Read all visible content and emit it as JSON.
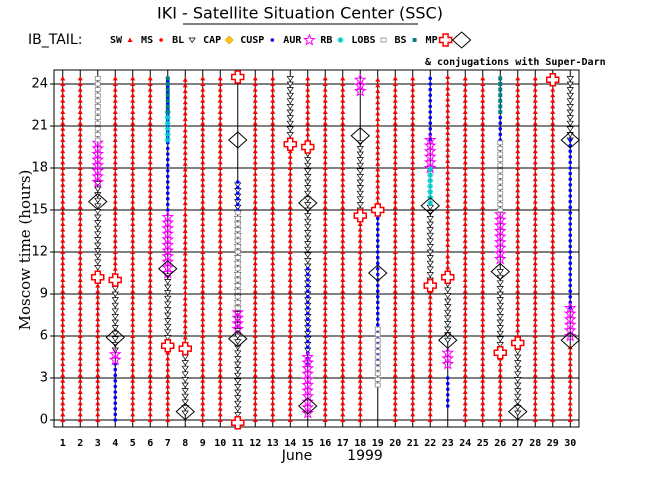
{
  "chart_data": {
    "type": "strip",
    "title": "IKI - Satellite Situation Center (SSC)",
    "mission": "IB_TAIL:",
    "note": "& conjugations with Super-Darn",
    "ylabel": "Moscow time (hours)",
    "xlabel": "June",
    "year": "1999",
    "xlim": [
      0.5,
      30.5
    ],
    "xticks": [
      1,
      2,
      3,
      4,
      5,
      6,
      7,
      8,
      9,
      10,
      11,
      12,
      13,
      14,
      15,
      16,
      17,
      18,
      19,
      20,
      21,
      22,
      23,
      24,
      25,
      26,
      27,
      28,
      29,
      30
    ],
    "ylim": [
      -0.5,
      25
    ],
    "yticks": [
      0,
      3,
      6,
      9,
      12,
      15,
      18,
      21,
      24
    ],
    "grid": true,
    "series": [
      {
        "name": "SW",
        "color": "#ff0000",
        "symbol": "triangle-up",
        "segments": [
          [
            1,
            0,
            24.5
          ],
          [
            2,
            0,
            24.5
          ],
          [
            3,
            0,
            10
          ],
          [
            4,
            10,
            24.5
          ],
          [
            5,
            0,
            24.5
          ],
          [
            6,
            0,
            24.5
          ],
          [
            7,
            0,
            5
          ],
          [
            8,
            5.5,
            24.5
          ],
          [
            9,
            0,
            24.5
          ],
          [
            10,
            0,
            24.5
          ],
          [
            12,
            0,
            24.5
          ],
          [
            13,
            0,
            24.5
          ],
          [
            14,
            0,
            19.5
          ],
          [
            15,
            20,
            24.5
          ],
          [
            16,
            0,
            24.5
          ],
          [
            17,
            0,
            24.5
          ],
          [
            18,
            0,
            14.5
          ],
          [
            19,
            15.5,
            24.5
          ],
          [
            20,
            0,
            24.5
          ],
          [
            21,
            0,
            24.5
          ],
          [
            22,
            0,
            9.5
          ],
          [
            23,
            10.5,
            24.5
          ],
          [
            24,
            0,
            24.5
          ],
          [
            25,
            0,
            24.5
          ],
          [
            26,
            0,
            4.5
          ],
          [
            27,
            6,
            24.5
          ],
          [
            28,
            0,
            24.5
          ],
          [
            29,
            0,
            24
          ],
          [
            30,
            0,
            5.5
          ]
        ]
      },
      {
        "name": "MS",
        "color": "#ff0000",
        "symbol": "dot",
        "segments": []
      },
      {
        "name": "BL",
        "color": "#000000",
        "symbol": "triangle-down",
        "segments": [
          [
            3,
            10.5,
            17
          ],
          [
            4,
            5,
            9.7
          ],
          [
            7,
            5.5,
            10.5
          ],
          [
            8,
            0.5,
            5
          ],
          [
            11,
            0,
            17
          ],
          [
            14,
            20,
            24.5
          ],
          [
            15,
            5,
            19.5
          ],
          [
            18,
            15,
            20
          ],
          [
            22,
            9.6,
            15.3
          ],
          [
            23,
            5.7,
            10
          ],
          [
            26,
            5,
            10.6
          ],
          [
            27,
            0.5,
            5.5
          ],
          [
            30,
            20,
            24.5
          ]
        ]
      },
      {
        "name": "CAP",
        "color": "#ffcc00",
        "symbol": "diamond-fill",
        "segments": []
      },
      {
        "name": "CUSP",
        "color": "#0000ff",
        "symbol": "dot",
        "segments": [
          [
            4,
            0,
            4
          ],
          [
            7,
            15,
            24.5
          ],
          [
            11,
            15,
            17
          ],
          [
            15,
            4,
            11
          ],
          [
            19,
            4,
            15
          ],
          [
            22,
            20,
            24.5
          ],
          [
            23,
            1,
            3
          ],
          [
            26,
            20,
            24.5
          ],
          [
            30,
            8,
            20
          ]
        ]
      },
      {
        "name": "AUR",
        "color": "#ff00ff",
        "symbol": "star",
        "segments": [
          [
            3,
            17,
            20
          ],
          [
            4,
            4.3,
            4.7
          ],
          [
            7,
            10.5,
            14.5
          ],
          [
            11,
            6.5,
            8
          ],
          [
            15,
            0.5,
            4.5
          ],
          [
            18,
            23.5,
            24.5
          ],
          [
            22,
            18,
            20
          ],
          [
            23,
            4,
            5
          ],
          [
            26,
            11.5,
            15
          ],
          [
            30,
            6,
            8
          ]
        ]
      },
      {
        "name": "RB",
        "color": "#00cccc",
        "symbol": "star-small",
        "segments": [
          [
            7,
            20,
            22
          ],
          [
            22,
            15.5,
            18
          ]
        ]
      },
      {
        "name": "LOBS",
        "color": "#888888",
        "symbol": "square",
        "segments": [
          [
            3,
            20,
            24.5
          ],
          [
            11,
            8,
            15
          ],
          [
            19,
            2.5,
            6.5
          ],
          [
            26,
            15,
            20
          ]
        ]
      },
      {
        "name": "BS",
        "color": "#008080",
        "symbol": "square-fill",
        "segments": [
          [
            7,
            22,
            24.5
          ],
          [
            26,
            22,
            24.5
          ]
        ]
      }
    ],
    "points": [
      {
        "name": "MP",
        "color": "#ff0000",
        "symbol": "cross",
        "points": [
          [
            3,
            10.2
          ],
          [
            4,
            10
          ],
          [
            7,
            5.3
          ],
          [
            8,
            5.1
          ],
          [
            11,
            24.5
          ],
          [
            11,
            -0.2
          ],
          [
            14,
            19.7
          ],
          [
            15,
            19.5
          ],
          [
            18,
            14.6
          ],
          [
            19,
            15
          ],
          [
            22,
            9.6
          ],
          [
            23,
            10.2
          ],
          [
            26,
            4.8
          ],
          [
            27,
            5.5
          ],
          [
            29,
            24.3
          ]
        ]
      },
      {
        "color": "#000000",
        "symbol": "diamond",
        "points": [
          [
            3,
            15.6
          ],
          [
            4,
            5.9
          ],
          [
            7,
            10.8
          ],
          [
            8,
            0.6
          ],
          [
            11,
            20
          ],
          [
            11,
            5.8
          ],
          [
            15,
            15.5
          ],
          [
            15,
            1
          ],
          [
            18,
            20.3
          ],
          [
            19,
            10.5
          ],
          [
            22,
            15.3
          ],
          [
            23,
            5.7
          ],
          [
            26,
            10.6
          ],
          [
            27,
            0.6
          ],
          [
            30,
            20
          ],
          [
            30,
            5.7
          ]
        ]
      }
    ]
  }
}
